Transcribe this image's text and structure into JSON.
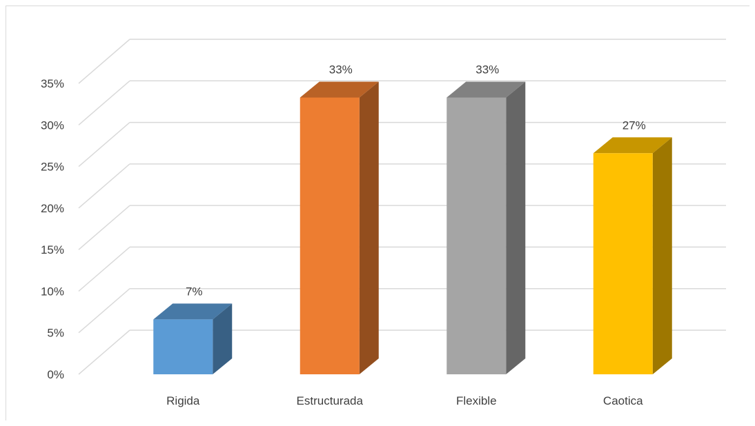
{
  "chart_data": {
    "type": "bar",
    "style": "3d-column",
    "title": "",
    "xlabel": "",
    "ylabel": "",
    "categories": [
      "Rigida",
      "Estructurada",
      "Flexible",
      "Caotica"
    ],
    "values": [
      0.066,
      0.333,
      0.333,
      0.266
    ],
    "data_labels": [
      "7%",
      "33%",
      "33%",
      "27%"
    ],
    "colors": [
      "#5b9bd5",
      "#ed7d31",
      "#a5a5a5",
      "#ffc000"
    ],
    "ylim": [
      0,
      0.35
    ],
    "yticks": [
      {
        "value": 0,
        "label": "0%"
      },
      {
        "value": 0.05,
        "label": "5%"
      },
      {
        "value": 0.1,
        "label": "10%"
      },
      {
        "value": 0.15,
        "label": "15%"
      },
      {
        "value": 0.2,
        "label": "20%"
      },
      {
        "value": 0.25,
        "label": "25%"
      },
      {
        "value": 0.3,
        "label": "30%"
      },
      {
        "value": 0.35,
        "label": "35%"
      }
    ],
    "grid": true,
    "legend": "none"
  }
}
